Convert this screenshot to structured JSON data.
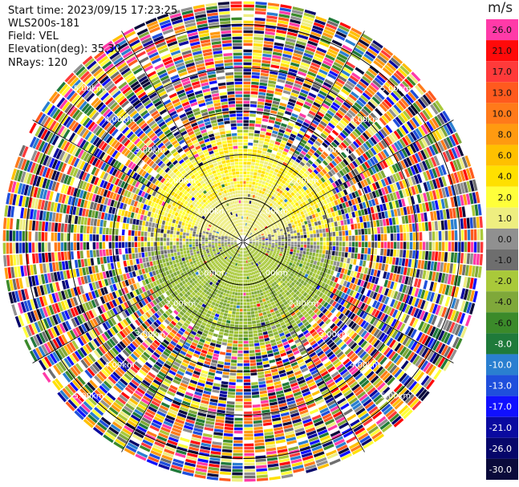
{
  "header": {
    "start_time": "Start time: 2023/09/15 17:23:25",
    "instrument": "WLS200s-181",
    "field": "Field: VEL",
    "elevation": "Elevation(deg): 35.30",
    "nrays": "NRays: 120"
  },
  "colorbar": {
    "unit": "m/s",
    "bins": [
      {
        "label": "26.0",
        "color": "#ff3aa8"
      },
      {
        "label": "21.0",
        "color": "#ff0a0a"
      },
      {
        "label": "17.0",
        "color": "#ff3a3a"
      },
      {
        "label": "13.0",
        "color": "#ff5a1e"
      },
      {
        "label": "10.0",
        "color": "#ff7a1a"
      },
      {
        "label": "8.0",
        "color": "#ff9a10"
      },
      {
        "label": "6.0",
        "color": "#ffc000"
      },
      {
        "label": "4.0",
        "color": "#ffe000"
      },
      {
        "label": "2.0",
        "color": "#ffff3a"
      },
      {
        "label": "1.0",
        "color": "#eeee80"
      },
      {
        "label": "0.0",
        "color": "#909090"
      },
      {
        "label": "-1.0",
        "color": "#6e6e6e"
      },
      {
        "label": "-2.0",
        "color": "#a9c93a"
      },
      {
        "label": "-4.0",
        "color": "#7fa83a"
      },
      {
        "label": "-6.0",
        "color": "#3b8a2a"
      },
      {
        "label": "-8.0",
        "color": "#1f7a3a"
      },
      {
        "label": "-10.0",
        "color": "#2a7fd0"
      },
      {
        "label": "-13.0",
        "color": "#1f4fdc"
      },
      {
        "label": "-17.0",
        "color": "#1010ff"
      },
      {
        "label": "-21.0",
        "color": "#0a0aa0"
      },
      {
        "label": "-26.0",
        "color": "#06066a"
      },
      {
        "label": "-30.0",
        "color": "#0a0a3a"
      }
    ]
  },
  "chart_data": {
    "type": "heatmap",
    "projection": "PPI polar",
    "field": "VEL",
    "units": "m/s",
    "elevation_deg": 35.3,
    "n_rays": 120,
    "range_rings_km": [
      1.0,
      2.0,
      3.0,
      4.0,
      5.0
    ],
    "ring_labels": [
      "1.00km",
      "2.00km",
      "3.00km",
      "4.00km",
      "5.00km"
    ],
    "max_range_km": 5.6,
    "spokes_deg": [
      0,
      30,
      60,
      90,
      120,
      150,
      180,
      210,
      240,
      270,
      300,
      330
    ],
    "clean_region": {
      "north_half_color": "yellow (about +2 to +4 m/s)",
      "south_half_color": "olive/green (about -2 to -4 m/s)",
      "transition_color": "gray (near 0 m/s)",
      "approx_clean_range_km": 2.4
    },
    "outer_region": "noisy, random velocities across full color scale"
  }
}
